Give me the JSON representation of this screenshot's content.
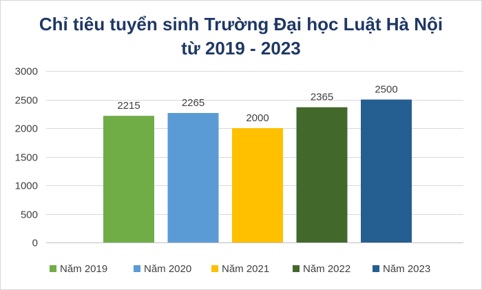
{
  "chart_data": {
    "type": "bar",
    "title_lines": [
      "Chỉ tiêu tuyển sinh Trường Đại học Luật Hà Nội",
      "từ 2019 - 2023"
    ],
    "categories": [
      "Năm 2019",
      "Năm 2020",
      "Năm 2021",
      "Năm 2022",
      "Năm 2023"
    ],
    "values": [
      2215,
      2265,
      2000,
      2365,
      2500
    ],
    "colors": [
      "#70ad47",
      "#5b9bd5",
      "#ffc000",
      "#43682b",
      "#255e91"
    ],
    "ylim": [
      0,
      3000
    ],
    "yticks": [
      0,
      500,
      1000,
      1500,
      2000,
      2500,
      3000
    ],
    "grid": true,
    "legend_position": "bottom",
    "data_labels": true
  }
}
